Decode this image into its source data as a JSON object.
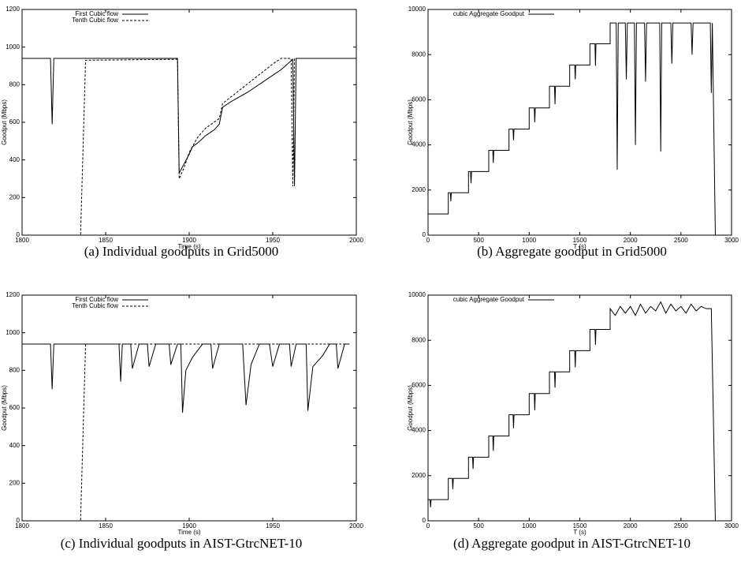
{
  "chart_data": [
    {
      "type": "line",
      "caption": "(a)  Individual goodputs in Grid5000",
      "xlabel": "Time (s)",
      "ylabel": "Goodput (Mbps)",
      "xlim": [
        1800,
        2000
      ],
      "xticks": [
        1800,
        1850,
        1900,
        1950,
        2000
      ],
      "ylim": [
        0,
        1200
      ],
      "yticks": [
        0,
        200,
        400,
        600,
        800,
        1000,
        1200
      ],
      "legend": "upper left",
      "series": [
        {
          "name": "First Cubic flow",
          "color": "#000000",
          "dashed": false,
          "x": [
            1800,
            1817,
            1818,
            1819,
            1893,
            1894,
            1897,
            1900,
            1902,
            1905,
            1910,
            1915,
            1918,
            1920,
            1925,
            1935,
            1945,
            1955,
            1962,
            1963,
            1964,
            2000
          ],
          "values": [
            940,
            940,
            590,
            940,
            940,
            330,
            380,
            430,
            470,
            490,
            530,
            560,
            590,
            680,
            710,
            760,
            820,
            880,
            935,
            260,
            940,
            940
          ]
        },
        {
          "name": "Tenth Cubic flow",
          "color": "#000000",
          "dashed": true,
          "x": [
            1800,
            1835,
            1838,
            1893,
            1894,
            1897,
            1900,
            1905,
            1910,
            1918,
            1920,
            1930,
            1940,
            1950,
            1955,
            1961,
            1962,
            1963,
            2000
          ],
          "values": [
            0,
            0,
            930,
            935,
            300,
            360,
            440,
            520,
            570,
            620,
            700,
            770,
            840,
            910,
            940,
            940,
            260,
            940,
            940
          ]
        }
      ]
    },
    {
      "type": "line",
      "caption": "(b)  Aggregate goodput in Grid5000",
      "xlabel": "T (s)",
      "ylabel": "Goodput (Mbps)",
      "xlim": [
        0,
        3000
      ],
      "xticks": [
        0,
        500,
        1000,
        1500,
        2000,
        2500,
        3000
      ],
      "ylim": [
        0,
        10000
      ],
      "yticks": [
        0,
        2000,
        4000,
        6000,
        8000,
        10000
      ],
      "legend": "upper left",
      "series": [
        {
          "name": "cubic Aggregate Goodput",
          "color": "#000000",
          "dashed": false,
          "x": [
            0,
            200,
            200,
            220,
            225,
            230,
            400,
            400,
            420,
            425,
            430,
            600,
            600,
            640,
            645,
            650,
            800,
            800,
            840,
            845,
            850,
            1000,
            1000,
            1050,
            1055,
            1060,
            1200,
            1200,
            1250,
            1255,
            1260,
            1400,
            1400,
            1450,
            1455,
            1460,
            1600,
            1600,
            1650,
            1655,
            1660,
            1800,
            1800,
            1860,
            1870,
            1880,
            1950,
            1960,
            1970,
            2040,
            2050,
            2060,
            2140,
            2150,
            2160,
            2290,
            2300,
            2310,
            2400,
            2410,
            2420,
            2600,
            2610,
            2620,
            2790,
            2800,
            2810,
            2840
          ],
          "values": [
            940,
            940,
            1880,
            1880,
            1500,
            1880,
            1880,
            2820,
            2820,
            2300,
            2820,
            2820,
            3760,
            3760,
            3200,
            3760,
            3760,
            4700,
            4700,
            4200,
            4700,
            4700,
            5640,
            5640,
            5000,
            5640,
            5640,
            6600,
            6600,
            5800,
            6600,
            6600,
            7540,
            7540,
            6900,
            7540,
            7540,
            8480,
            8480,
            7500,
            8480,
            8480,
            9400,
            9400,
            2900,
            9400,
            9400,
            6900,
            9400,
            9400,
            4000,
            9400,
            9400,
            6800,
            9400,
            9400,
            3700,
            9400,
            9400,
            7600,
            9400,
            9400,
            8000,
            9400,
            9400,
            6300,
            9400,
            0
          ]
        }
      ]
    },
    {
      "type": "line",
      "caption": "(c)  Individual goodputs in AIST-GtrcNET-10",
      "xlabel": "Time (s)",
      "ylabel": "Goodput (Mbps)",
      "xlim": [
        1800,
        2000
      ],
      "xticks": [
        1800,
        1850,
        1900,
        1950,
        2000
      ],
      "ylim": [
        0,
        1200
      ],
      "yticks": [
        0,
        200,
        400,
        600,
        800,
        1000,
        1200
      ],
      "legend": "upper left",
      "series": [
        {
          "name": "First Cubic flow",
          "color": "#000000",
          "dashed": false,
          "x": [
            1800,
            1817,
            1818,
            1819,
            1858,
            1859,
            1860,
            1865,
            1866,
            1870,
            1875,
            1876,
            1880,
            1888,
            1889,
            1893,
            1895,
            1896,
            1898,
            1902,
            1908,
            1913,
            1914,
            1918,
            1932,
            1934,
            1937,
            1942,
            1948,
            1950,
            1954,
            1960,
            1961,
            1964,
            1970,
            1971,
            1974,
            1980,
            1984,
            1988,
            1989,
            1993,
            1996
          ],
          "values": [
            940,
            940,
            700,
            940,
            940,
            740,
            940,
            940,
            810,
            940,
            940,
            820,
            940,
            940,
            830,
            940,
            940,
            575,
            800,
            870,
            940,
            940,
            810,
            940,
            940,
            615,
            830,
            940,
            940,
            820,
            940,
            940,
            820,
            940,
            940,
            585,
            820,
            880,
            940,
            940,
            810,
            940,
            940
          ]
        },
        {
          "name": "Tenth Cubic flow",
          "color": "#000000",
          "dashed": true,
          "x": [
            1800,
            1835,
            1838,
            1996
          ],
          "values": [
            0,
            0,
            940,
            940
          ]
        }
      ]
    },
    {
      "type": "line",
      "caption": "(d)  Aggregate goodput in AIST-GtrcNET-10",
      "xlabel": "T (s)",
      "ylabel": "Goodput (Mbps)",
      "xlim": [
        0,
        3000
      ],
      "xticks": [
        0,
        500,
        1000,
        1500,
        2000,
        2500,
        3000
      ],
      "ylim": [
        0,
        10000
      ],
      "yticks": [
        0,
        2000,
        4000,
        6000,
        8000,
        10000
      ],
      "legend": "upper left",
      "series": [
        {
          "name": "cubic Aggregate Goodput",
          "color": "#000000",
          "dashed": false,
          "x": [
            0,
            20,
            25,
            30,
            200,
            200,
            240,
            245,
            250,
            400,
            400,
            440,
            445,
            450,
            600,
            600,
            640,
            645,
            650,
            800,
            800,
            840,
            845,
            850,
            1000,
            1000,
            1050,
            1055,
            1060,
            1200,
            1200,
            1250,
            1255,
            1260,
            1400,
            1400,
            1450,
            1455,
            1460,
            1600,
            1600,
            1650,
            1655,
            1660,
            1800,
            1800,
            1850,
            1900,
            1950,
            2000,
            2050,
            2100,
            2150,
            2200,
            2250,
            2300,
            2350,
            2400,
            2450,
            2500,
            2550,
            2600,
            2650,
            2700,
            2750,
            2800,
            2840
          ],
          "values": [
            940,
            940,
            600,
            940,
            940,
            1880,
            1880,
            1400,
            1880,
            1880,
            2820,
            2820,
            2300,
            2820,
            2820,
            3760,
            3760,
            3100,
            3760,
            3760,
            4700,
            4700,
            4100,
            4700,
            4700,
            5640,
            5640,
            4900,
            5640,
            5640,
            6600,
            6600,
            5900,
            6600,
            6600,
            7540,
            7540,
            6800,
            7540,
            7540,
            8480,
            8480,
            7800,
            8480,
            8480,
            9400,
            9100,
            9500,
            9200,
            9500,
            9100,
            9600,
            9200,
            9500,
            9300,
            9700,
            9200,
            9600,
            9300,
            9500,
            9200,
            9600,
            9300,
            9500,
            9400,
            9400,
            0
          ]
        }
      ]
    }
  ]
}
